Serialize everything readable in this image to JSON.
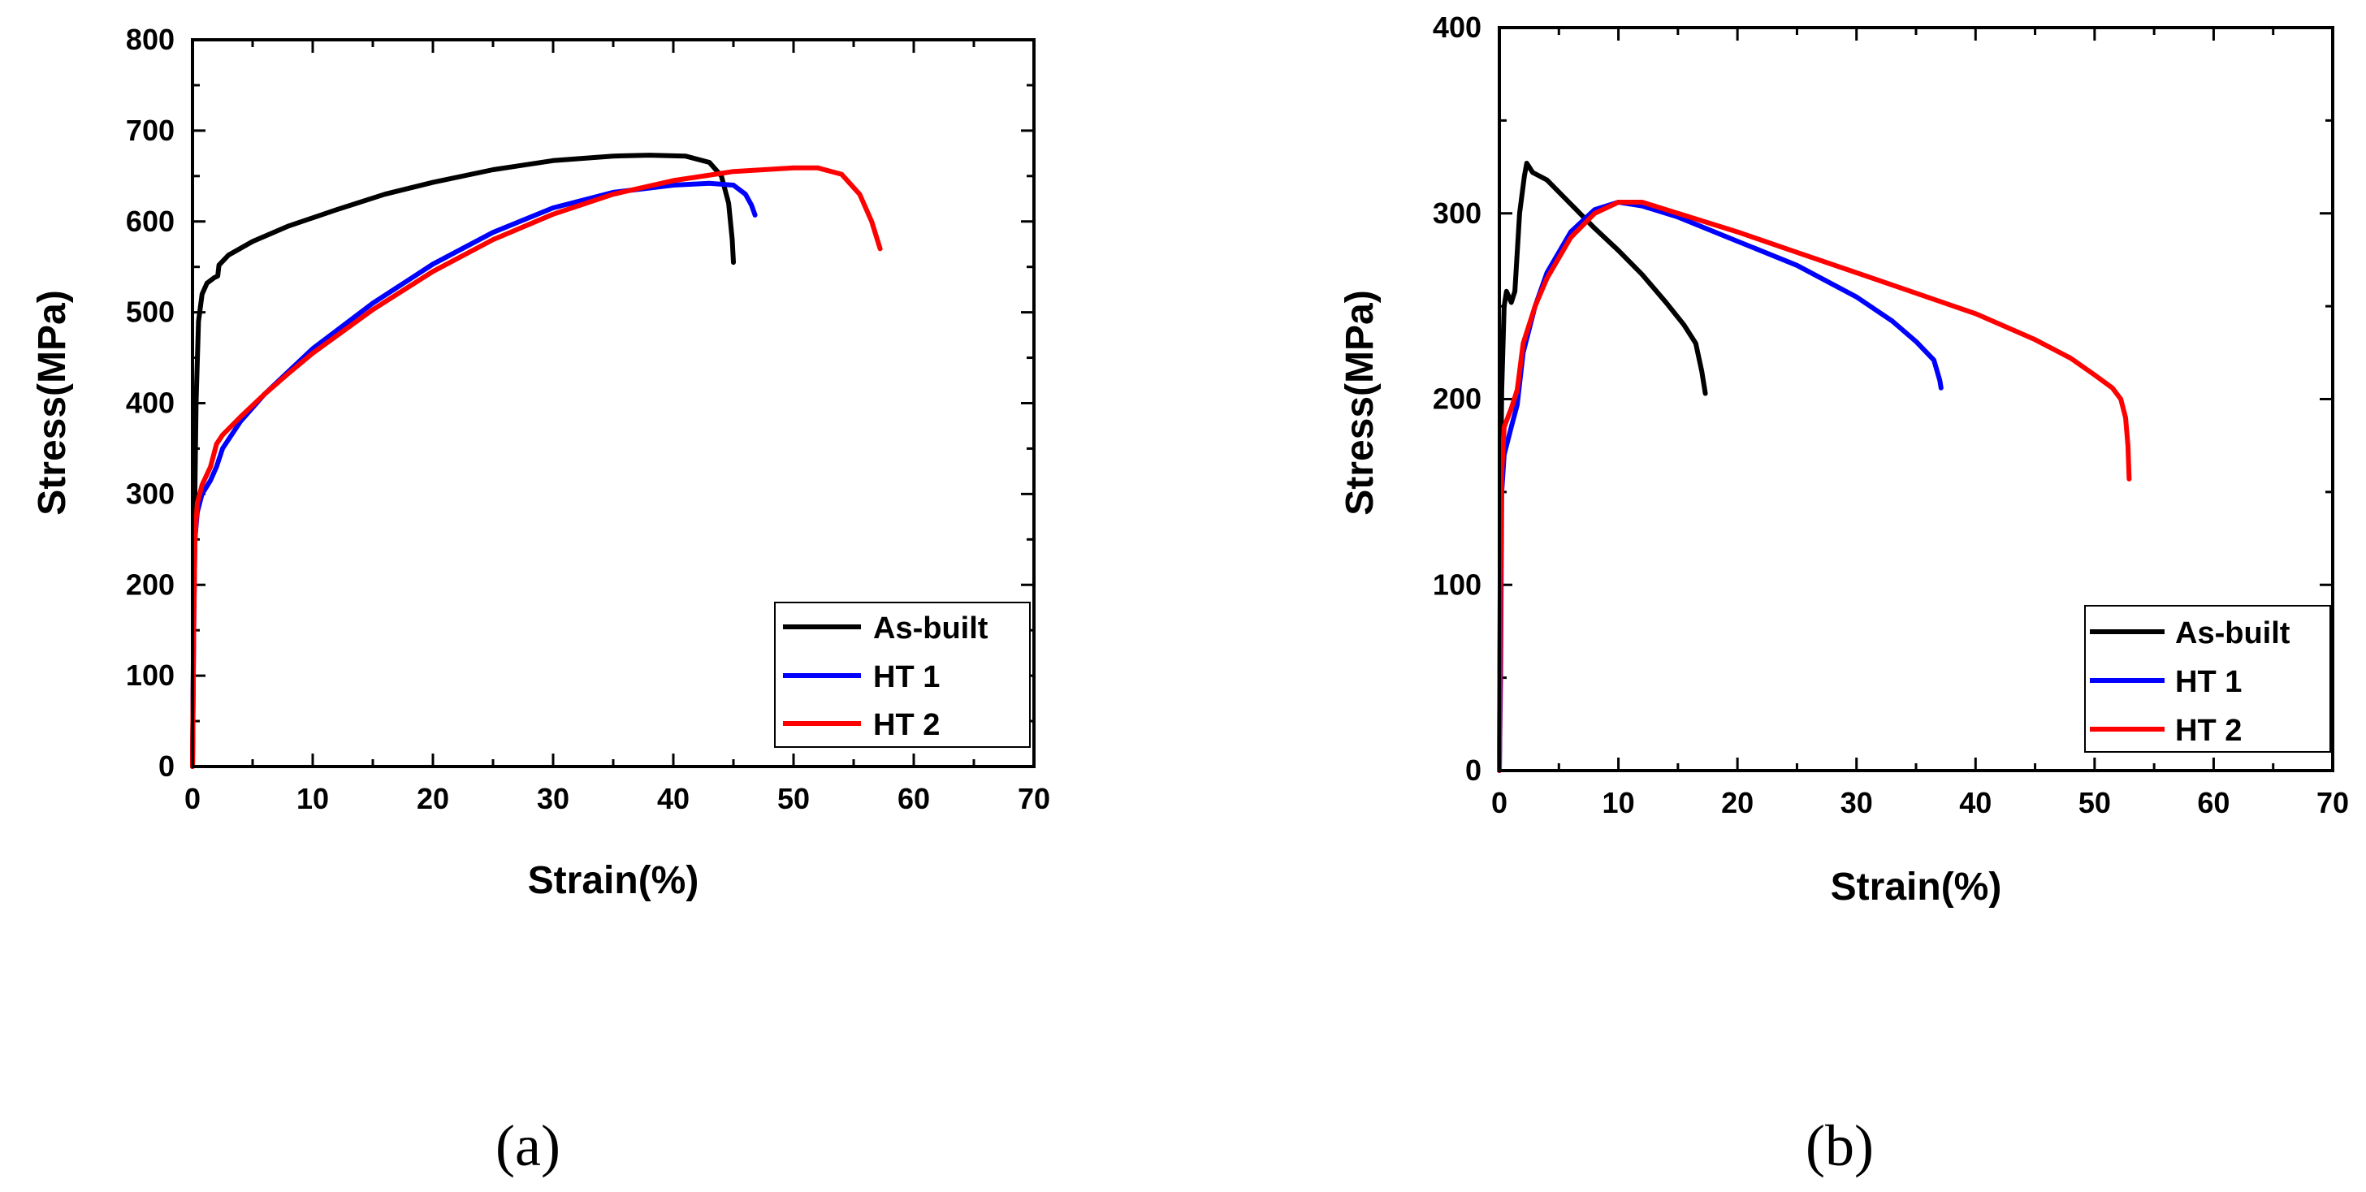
{
  "chart_data": [
    {
      "type": "line",
      "panel": "a",
      "caption": "(a)",
      "xlabel": "Strain(%)",
      "ylabel": "Stress(MPa)",
      "xlim": [
        0,
        70
      ],
      "ylim": [
        0,
        800
      ],
      "xticks": [
        0,
        10,
        20,
        30,
        40,
        50,
        60,
        70
      ],
      "yticks": [
        0,
        100,
        200,
        300,
        400,
        500,
        600,
        700,
        800
      ],
      "legend_position": "bottom-right",
      "series": [
        {
          "name": "As-built",
          "color": "#000000",
          "points": [
            [
              0,
              0
            ],
            [
              0.15,
              250
            ],
            [
              0.3,
              400
            ],
            [
              0.5,
              490
            ],
            [
              0.8,
              520
            ],
            [
              1.2,
              532
            ],
            [
              1.8,
              538
            ],
            [
              2.1,
              540
            ],
            [
              2.2,
              552
            ],
            [
              3,
              563
            ],
            [
              5,
              578
            ],
            [
              8,
              595
            ],
            [
              12,
              613
            ],
            [
              16,
              630
            ],
            [
              20,
              643
            ],
            [
              25,
              657
            ],
            [
              30,
              667
            ],
            [
              35,
              672
            ],
            [
              38,
              673
            ],
            [
              41,
              672
            ],
            [
              43,
              665
            ],
            [
              44,
              650
            ],
            [
              44.6,
              620
            ],
            [
              44.9,
              580
            ],
            [
              45,
              555
            ]
          ]
        },
        {
          "name": "HT 1",
          "color": "#0000ff",
          "points": [
            [
              0,
              0
            ],
            [
              0.1,
              150
            ],
            [
              0.2,
              250
            ],
            [
              0.4,
              280
            ],
            [
              0.8,
              300
            ],
            [
              1.5,
              315
            ],
            [
              2,
              330
            ],
            [
              2.5,
              350
            ],
            [
              4,
              380
            ],
            [
              6,
              410
            ],
            [
              8,
              435
            ],
            [
              10,
              460
            ],
            [
              15,
              510
            ],
            [
              20,
              553
            ],
            [
              25,
              588
            ],
            [
              30,
              615
            ],
            [
              35,
              632
            ],
            [
              40,
              640
            ],
            [
              43,
              642
            ],
            [
              45,
              640
            ],
            [
              46,
              630
            ],
            [
              46.5,
              618
            ],
            [
              46.8,
              607
            ]
          ]
        },
        {
          "name": "HT 2",
          "color": "#ff0000",
          "points": [
            [
              0,
              0
            ],
            [
              0.1,
              150
            ],
            [
              0.2,
              250
            ],
            [
              0.4,
              290
            ],
            [
              0.8,
              310
            ],
            [
              1.5,
              330
            ],
            [
              2,
              355
            ],
            [
              2.5,
              365
            ],
            [
              4,
              385
            ],
            [
              6,
              410
            ],
            [
              8,
              433
            ],
            [
              10,
              455
            ],
            [
              15,
              503
            ],
            [
              20,
              545
            ],
            [
              25,
              580
            ],
            [
              30,
              608
            ],
            [
              35,
              630
            ],
            [
              40,
              645
            ],
            [
              45,
              655
            ],
            [
              50,
              659
            ],
            [
              52,
              659
            ],
            [
              54,
              652
            ],
            [
              55.5,
              630
            ],
            [
              56.5,
              600
            ],
            [
              57.2,
              570
            ]
          ]
        }
      ]
    },
    {
      "type": "line",
      "panel": "b",
      "caption": "(b)",
      "xlabel": "Strain(%)",
      "ylabel": "Stress(MPa)",
      "xlim": [
        0,
        70
      ],
      "ylim": [
        0,
        400
      ],
      "xticks": [
        0,
        10,
        20,
        30,
        40,
        50,
        60,
        70
      ],
      "yticks": [
        0,
        100,
        200,
        300,
        400
      ],
      "legend_position": "bottom-right",
      "series": [
        {
          "name": "As-built",
          "color": "#000000",
          "points": [
            [
              0,
              0
            ],
            [
              0.1,
              150
            ],
            [
              0.2,
              205
            ],
            [
              0.4,
              250
            ],
            [
              0.6,
              258
            ],
            [
              1,
              252
            ],
            [
              1.3,
              258
            ],
            [
              1.7,
              300
            ],
            [
              2.1,
              320
            ],
            [
              2.3,
              327
            ],
            [
              2.8,
              322
            ],
            [
              4,
              318
            ],
            [
              6,
              305
            ],
            [
              8,
              292
            ],
            [
              10,
              280
            ],
            [
              12,
              267
            ],
            [
              14,
              252
            ],
            [
              15.5,
              240
            ],
            [
              16.5,
              230
            ],
            [
              17,
              215
            ],
            [
              17.3,
              203
            ]
          ]
        },
        {
          "name": "HT 1",
          "color": "#0000ff",
          "points": [
            [
              0,
              0
            ],
            [
              0.1,
              50
            ],
            [
              0.2,
              150
            ],
            [
              0.4,
              170
            ],
            [
              1,
              185
            ],
            [
              1.5,
              197
            ],
            [
              2,
              225
            ],
            [
              3,
              250
            ],
            [
              4,
              268
            ],
            [
              6,
              290
            ],
            [
              8,
              302
            ],
            [
              10,
              306
            ],
            [
              12,
              304
            ],
            [
              15,
              298
            ],
            [
              20,
              285
            ],
            [
              25,
              272
            ],
            [
              30,
              255
            ],
            [
              33,
              242
            ],
            [
              35,
              231
            ],
            [
              36.5,
              221
            ],
            [
              37,
              210
            ],
            [
              37.1,
              206
            ]
          ]
        },
        {
          "name": "HT 2",
          "color": "#ff0000",
          "points": [
            [
              0,
              0
            ],
            [
              0.1,
              100
            ],
            [
              0.2,
              160
            ],
            [
              0.4,
              185
            ],
            [
              1,
              195
            ],
            [
              1.5,
              205
            ],
            [
              2,
              230
            ],
            [
              3,
              250
            ],
            [
              4,
              265
            ],
            [
              6,
              287
            ],
            [
              8,
              300
            ],
            [
              10,
              306
            ],
            [
              12,
              306
            ],
            [
              15,
              300
            ],
            [
              20,
              290
            ],
            [
              25,
              279
            ],
            [
              30,
              268
            ],
            [
              35,
              257
            ],
            [
              40,
              246
            ],
            [
              45,
              232
            ],
            [
              48,
              222
            ],
            [
              50,
              213
            ],
            [
              51.5,
              206
            ],
            [
              52.2,
              200
            ],
            [
              52.6,
              190
            ],
            [
              52.8,
              175
            ],
            [
              52.9,
              157
            ]
          ]
        }
      ]
    }
  ]
}
